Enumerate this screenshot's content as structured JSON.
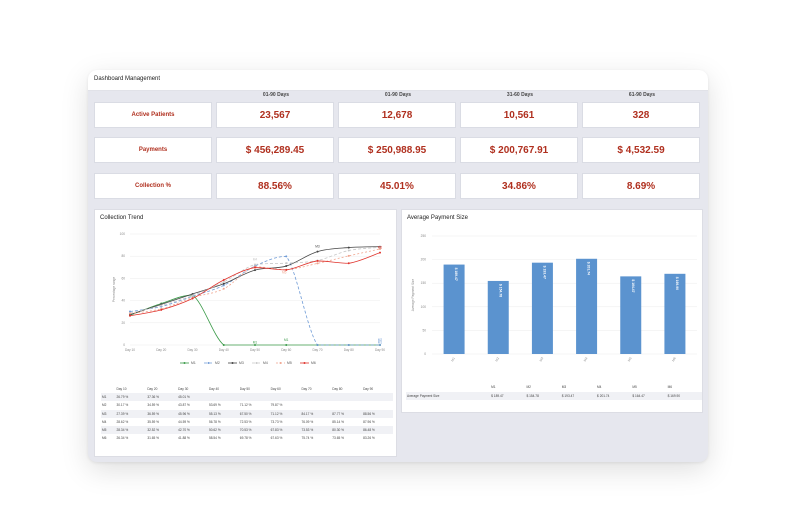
{
  "window": {
    "title": "Dashboard Management"
  },
  "summary": {
    "columns": [
      "01-90 Days",
      "01-90 Days",
      "31-60 Days",
      "61-90 Days"
    ],
    "rows": [
      {
        "label": "Active Patients",
        "values": [
          "23,567",
          "12,678",
          "10,561",
          "328"
        ]
      },
      {
        "label": "Payments",
        "values": [
          "$ 456,289.45",
          "$ 250,988.95",
          "$ 200,767.91",
          "$ 4,532.59"
        ]
      },
      {
        "label": "Collection %",
        "values": [
          "88.56%",
          "45.01%",
          "34.86%",
          "8.69%"
        ]
      }
    ]
  },
  "collection_trend": {
    "title": "Collection Trend",
    "table_headers": [
      "",
      "Day 10",
      "Day 20",
      "Day 30",
      "Day 40",
      "Day 50",
      "Day 60",
      "Day 70",
      "Day 80",
      "Day 90"
    ],
    "table_rows": [
      [
        "M1",
        "26.79 %",
        "37.36 %",
        "45.01 %",
        "",
        "",
        "",
        "",
        "",
        ""
      ],
      [
        "M2",
        "30.17 %",
        "34.59 %",
        "43.87 %",
        "53.69 %",
        "71.12 %",
        "79.87 %",
        "",
        "",
        ""
      ],
      [
        "M3",
        "27.39 %",
        "36.59 %",
        "45.96 %",
        "55.13 %",
        "67.50 %",
        "71.12 %",
        "84.17 %",
        "87.77 %",
        "88.56 %"
      ],
      [
        "M4",
        "28.62 %",
        "35.59 %",
        "44.59 %",
        "56.78 %",
        "72.53 %",
        "73.73 %",
        "76.09 %",
        "85.14 %",
        "87.96 %"
      ],
      [
        "M5",
        "28.34 %",
        "32.52 %",
        "42.70 %",
        "50.62 %",
        "70.53 %",
        "67.83 %",
        "73.53 %",
        "80.30 %",
        "86.48 %"
      ],
      [
        "M6",
        "26.34 %",
        "31.65 %",
        "41.88 %",
        "58.54 %",
        "69.78 %",
        "67.63 %",
        "75.74 %",
        "73.65 %",
        "83.26 %"
      ]
    ]
  },
  "average_payment": {
    "title": "Average Payment Size",
    "table_headers": [
      "",
      "M1",
      "M2",
      "M3",
      "M4",
      "M5",
      "M6"
    ],
    "table_rows": [
      [
        "Average Payment Size",
        "$ 189.47",
        "$ 154.78",
        "$ 193.47",
        "$ 201.74",
        "$ 164.47",
        "$ 169.90"
      ]
    ]
  },
  "chart_data": [
    {
      "type": "line",
      "title": "Collection Trend",
      "xlabel": "",
      "ylabel": "Percentage range",
      "ylim": [
        0,
        100
      ],
      "y_ticks": [
        0,
        20,
        40,
        60,
        80,
        100
      ],
      "categories": [
        "Day 10",
        "Day 20",
        "Day 30",
        "Day 40",
        "Day 50",
        "Day 60",
        "Day 70",
        "Day 80",
        "Day 90"
      ],
      "series": [
        {
          "name": "M1",
          "color": "#3a9a48",
          "dash": "",
          "values": [
            26.79,
            37.36,
            45.01,
            0,
            0,
            0,
            0,
            0,
            0
          ]
        },
        {
          "name": "M2",
          "color": "#6f9bd6",
          "dash": "3,2",
          "values": [
            30.17,
            34.59,
            43.87,
            53.69,
            71.12,
            79.87,
            0,
            0,
            0
          ]
        },
        {
          "name": "M3",
          "color": "#444444",
          "dash": "",
          "values": [
            27.39,
            36.59,
            45.96,
            55.13,
            67.5,
            71.12,
            84.17,
            87.77,
            88.56
          ]
        },
        {
          "name": "M4",
          "color": "#c8c8c8",
          "dash": "3,2",
          "values": [
            28.62,
            35.59,
            44.59,
            56.78,
            72.53,
            73.73,
            76.09,
            85.14,
            87.96
          ]
        },
        {
          "name": "M5",
          "color": "#f0a48e",
          "dash": "2,2",
          "values": [
            28.34,
            32.52,
            42.7,
            50.62,
            70.53,
            67.83,
            73.53,
            80.3,
            86.48
          ]
        },
        {
          "name": "M6",
          "color": "#e0332c",
          "dash": "",
          "values": [
            26.34,
            31.65,
            41.88,
            58.54,
            69.78,
            67.63,
            75.74,
            73.65,
            83.26
          ]
        }
      ],
      "point_labels": [
        {
          "series": "M1",
          "text": "M1"
        },
        {
          "series": "M2",
          "text": "M2"
        },
        {
          "series": "M3",
          "text": "M3"
        },
        {
          "series": "M4",
          "text": "M4"
        },
        {
          "series": "M5",
          "text": "M5"
        },
        {
          "series": "M6",
          "text": "M6"
        }
      ],
      "legend": [
        "M1",
        "M2",
        "M3",
        "M4",
        "M5",
        "M6"
      ],
      "grid": true
    },
    {
      "type": "bar",
      "title": "Average Payment Size",
      "xlabel": "",
      "ylabel": "Average Payment Size",
      "ylim": [
        0,
        250
      ],
      "y_ticks": [
        0,
        50,
        100,
        150,
        200,
        250
      ],
      "categories": [
        "M1",
        "M2",
        "M3",
        "M4",
        "M5",
        "M6"
      ],
      "values": [
        189.47,
        154.78,
        193.47,
        201.74,
        164.47,
        169.9
      ],
      "data_labels": [
        "$ 189.47",
        "$ 154.78",
        "$ 193.47",
        "$ 201.74",
        "$ 164.47",
        "$ 169.90"
      ],
      "bar_color": "#5b93cf",
      "grid": true
    }
  ]
}
